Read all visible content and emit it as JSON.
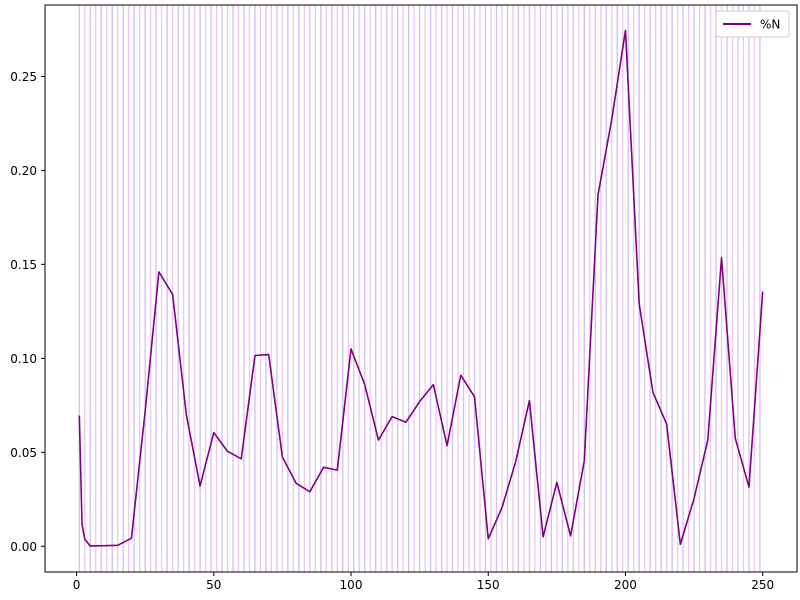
{
  "chart_data": {
    "type": "line",
    "title": "",
    "xlabel": "",
    "ylabel": "",
    "xlim": [
      -11.5,
      262.5
    ],
    "ylim": [
      -0.0137,
      0.288
    ],
    "xticks": [
      0,
      50,
      100,
      150,
      200,
      250
    ],
    "yticks": [
      0.0,
      0.05,
      0.1,
      0.15,
      0.2,
      0.25
    ],
    "xtick_labels": [
      "0",
      "50",
      "100",
      "150",
      "200",
      "250"
    ],
    "ytick_labels": [
      "0.00",
      "0.05",
      "0.10",
      "0.15",
      "0.20",
      "0.25"
    ],
    "grid": false,
    "legend_position": "upper right",
    "background_band": {
      "x_start": 1,
      "x_end": 250,
      "step": 2,
      "colors": [
        "#cfc0f0",
        "#ecc8ec"
      ]
    },
    "series": [
      {
        "name": "%N",
        "color": "#800080",
        "x": [
          1,
          2,
          3,
          5,
          10,
          15,
          20,
          25,
          30,
          35,
          40,
          45,
          50,
          55,
          60,
          65,
          70,
          75,
          80,
          85,
          90,
          95,
          100,
          105,
          110,
          115,
          120,
          125,
          130,
          135,
          140,
          145,
          150,
          155,
          160,
          165,
          170,
          175,
          180,
          185,
          190,
          195,
          200,
          205,
          210,
          215,
          220,
          225,
          230,
          235,
          240,
          245,
          250
        ],
        "y": [
          0.0695,
          0.0115,
          0.0037,
          0.0001,
          0.0003,
          0.0005,
          0.0043,
          0.072,
          0.146,
          0.134,
          0.07,
          0.032,
          0.0605,
          0.0505,
          0.0465,
          0.1015,
          0.102,
          0.0475,
          0.0335,
          0.029,
          0.042,
          0.0405,
          0.105,
          0.086,
          0.0565,
          0.069,
          0.066,
          0.077,
          0.086,
          0.0535,
          0.091,
          0.0795,
          0.004,
          0.0205,
          0.045,
          0.0775,
          0.005,
          0.034,
          0.0055,
          0.0455,
          0.187,
          0.227,
          0.2745,
          0.129,
          0.082,
          0.065,
          0.001,
          0.0255,
          0.0565,
          0.1535,
          0.0575,
          0.0315,
          0.1355
        ]
      }
    ]
  }
}
